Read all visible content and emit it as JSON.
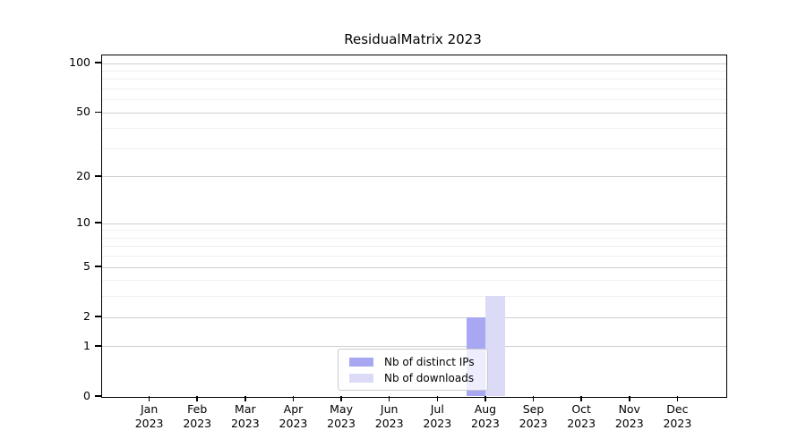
{
  "figure": {
    "title": "ResidualMatrix 2023",
    "background": "#ffffff"
  },
  "chart_data": {
    "type": "bar",
    "title": "ResidualMatrix 2023",
    "categories": [
      "Jan",
      "Feb",
      "Mar",
      "Apr",
      "May",
      "Jun",
      "Jul",
      "Aug",
      "Sep",
      "Oct",
      "Nov",
      "Dec"
    ],
    "category_year": "2023",
    "series": [
      {
        "name": "Nb of distinct IPs",
        "color": "#a7a7f2",
        "values": [
          0,
          0,
          0,
          0,
          0,
          0,
          0,
          2,
          0,
          0,
          0,
          0
        ]
      },
      {
        "name": "Nb of downloads",
        "color": "#dbdbf8",
        "values": [
          0,
          0,
          0,
          0,
          0,
          0,
          0,
          3,
          0,
          0,
          0,
          0
        ]
      }
    ],
    "yscale": "log1p",
    "ylim": [
      0,
      112
    ],
    "y_major_ticks": [
      0,
      1,
      2,
      5,
      10,
      20,
      50,
      100
    ],
    "y_minor_ticks": [
      3,
      4,
      6,
      7,
      8,
      9,
      30,
      40,
      60,
      70,
      80,
      90
    ],
    "grid": "horizontal-only",
    "legend_position": "lower-center-inside",
    "xlabel": "",
    "ylabel": ""
  },
  "legend": {
    "items": [
      {
        "label": "Nb of distinct IPs",
        "color": "#a7a7f2"
      },
      {
        "label": "Nb of downloads",
        "color": "#dbdbf8"
      }
    ]
  },
  "colors": {
    "grid_major": "#cfcfcf",
    "grid_minor": "#f0f0f0",
    "axis_line": "#000000",
    "text": "#000000",
    "legend_border": "#cccccc"
  }
}
